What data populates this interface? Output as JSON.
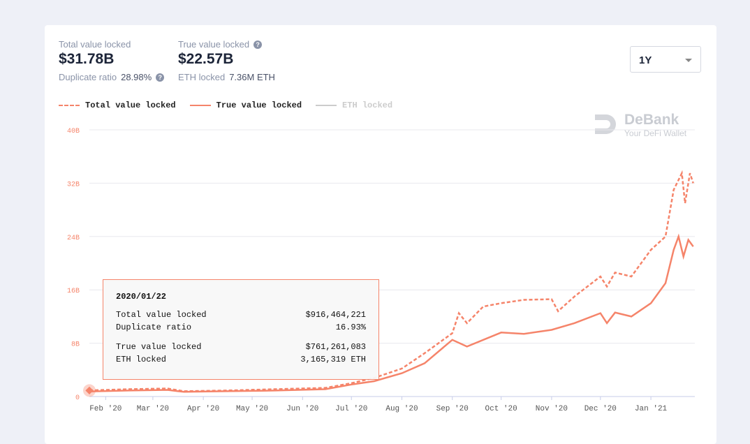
{
  "stats": {
    "tvl_label": "Total value locked",
    "tvl_value": "$31.78B",
    "dup_label": "Duplicate ratio",
    "dup_value": "28.98%",
    "true_label": "True value locked",
    "true_value": "$22.57B",
    "eth_label": "ETH locked",
    "eth_value": "7.36M ETH",
    "help_icon": "?"
  },
  "range_select": {
    "value": "1Y"
  },
  "watermark": {
    "brand": "DeBank",
    "tagline": "Your DeFi Wallet"
  },
  "colors": {
    "accent": "#f5846a",
    "eth": "#cccccc"
  },
  "tooltip": {
    "date": "2020/01/22",
    "rows": [
      {
        "label": "Total value locked",
        "value": "$916,464,221"
      },
      {
        "label": "Duplicate ratio",
        "value": "16.93%"
      },
      {
        "label": "True value locked",
        "value": "$761,261,083"
      },
      {
        "label": "ETH locked",
        "value": "3,165,319 ETH"
      }
    ]
  },
  "chart_data": {
    "type": "line",
    "ylim": [
      0,
      40
    ],
    "yticks": [
      "0",
      "8B",
      "16B",
      "24B",
      "32B",
      "40B"
    ],
    "xticks": [
      "Feb '20",
      "Mar '20",
      "Apr '20",
      "May '20",
      "Jun '20",
      "Jul '20",
      "Aug '20",
      "Sep '20",
      "Oct '20",
      "Nov '20",
      "Dec '20",
      "Jan '21"
    ],
    "legend_position": "top-left",
    "grid": true,
    "series": [
      {
        "name": "Total value locked",
        "style": "dashed",
        "x": [
          "2020-01-22",
          "2020-02-15",
          "2020-03-10",
          "2020-03-20",
          "2020-04-15",
          "2020-05-15",
          "2020-06-15",
          "2020-07-01",
          "2020-07-15",
          "2020-08-01",
          "2020-08-15",
          "2020-09-01",
          "2020-09-05",
          "2020-09-10",
          "2020-09-20",
          "2020-10-01",
          "2020-10-15",
          "2020-11-01",
          "2020-11-05",
          "2020-11-15",
          "2020-12-01",
          "2020-12-05",
          "2020-12-10",
          "2020-12-20",
          "2021-01-01",
          "2021-01-10",
          "2021-01-15",
          "2021-01-20",
          "2021-01-22",
          "2021-01-25",
          "2021-01-27"
        ],
        "values": [
          0.92,
          1.1,
          1.2,
          0.8,
          0.9,
          1.1,
          1.3,
          2,
          2.8,
          4.2,
          6.5,
          9.5,
          12.5,
          11,
          13.5,
          14,
          14.5,
          14.6,
          12.8,
          15,
          18,
          16.5,
          18.6,
          18,
          22,
          24,
          31,
          33.5,
          29,
          33.5,
          32
        ]
      },
      {
        "name": "True value locked",
        "style": "solid",
        "x": [
          "2020-01-22",
          "2020-02-15",
          "2020-03-10",
          "2020-03-20",
          "2020-04-15",
          "2020-05-15",
          "2020-06-15",
          "2020-07-01",
          "2020-07-15",
          "2020-08-01",
          "2020-08-15",
          "2020-09-01",
          "2020-09-10",
          "2020-10-01",
          "2020-10-15",
          "2020-11-01",
          "2020-11-15",
          "2020-12-01",
          "2020-12-05",
          "2020-12-10",
          "2020-12-20",
          "2021-01-01",
          "2021-01-10",
          "2021-01-15",
          "2021-01-18",
          "2021-01-21",
          "2021-01-24",
          "2021-01-27"
        ],
        "values": [
          0.76,
          0.9,
          1,
          0.7,
          0.8,
          0.9,
          1.1,
          1.8,
          2.3,
          3.5,
          5,
          8.5,
          7.5,
          9.6,
          9.4,
          10,
          11,
          12.5,
          11,
          12.6,
          12,
          14,
          17,
          22,
          24,
          21,
          23.5,
          22.5
        ]
      }
    ]
  }
}
